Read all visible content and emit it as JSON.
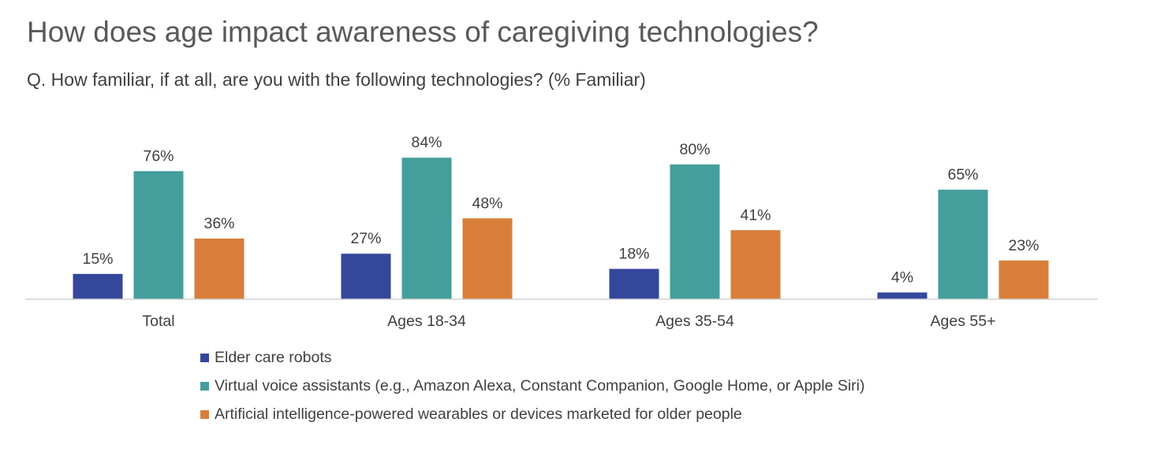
{
  "title": "How does age impact awareness of caregiving technologies?",
  "subtitle": "Q. How familiar, if at all, are you with the following technologies? (% Familiar)",
  "chart_data": {
    "type": "bar",
    "categories": [
      "Total",
      "Ages 18-34",
      "Ages 35-54",
      "Ages 55+"
    ],
    "series": [
      {
        "name": "Elder care robots",
        "color": "#34479b",
        "values": [
          15,
          27,
          18,
          4
        ],
        "labels": [
          "15%",
          "27%",
          "18%",
          "4%"
        ]
      },
      {
        "name": "Virtual voice assistants (e.g., Amazon Alexa, Constant Companion, Google Home, or Apple Siri)",
        "color": "#449e9c",
        "values": [
          76,
          84,
          80,
          65
        ],
        "labels": [
          "76%",
          "84%",
          "80%",
          "65%"
        ]
      },
      {
        "name": "Artificial intelligence-powered wearables or devices marketed for older people",
        "color": "#d97e3a",
        "values": [
          36,
          48,
          41,
          23
        ],
        "labels": [
          "36%",
          "48%",
          "41%",
          "23%"
        ]
      }
    ],
    "ylim": [
      0,
      100
    ],
    "xlabel": "",
    "ylabel": "",
    "grid": false,
    "legend": "bottom"
  }
}
